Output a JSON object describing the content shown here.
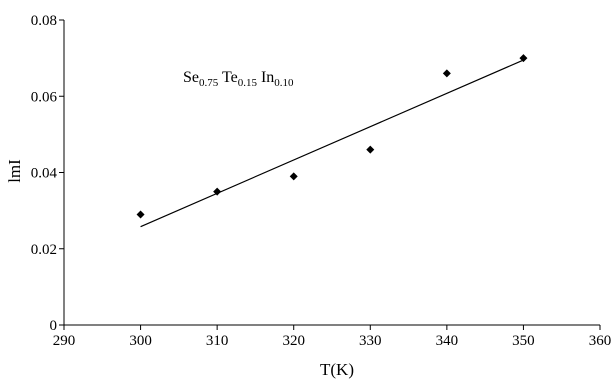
{
  "chart_data": {
    "type": "scatter",
    "xlabel": "T(K)",
    "ylabel": "lmI",
    "xlim": [
      290,
      360
    ],
    "ylim": [
      0,
      0.08
    ],
    "x_ticks": [
      290,
      300,
      310,
      320,
      330,
      340,
      350,
      360
    ],
    "y_ticks": [
      0,
      0.02,
      0.04,
      0.06,
      0.08
    ],
    "x_tick_labels": [
      "290",
      "300",
      "310",
      "320",
      "330",
      "340",
      "350",
      "360"
    ],
    "y_tick_labels": [
      "0",
      "0.02",
      "0.04",
      "0.06",
      "0.08"
    ],
    "grid": false,
    "series": [
      {
        "x": [
          300,
          310,
          320,
          330,
          340,
          350
        ],
        "y": [
          0.029,
          0.035,
          0.039,
          0.046,
          0.066,
          0.07
        ],
        "marker": "diamond",
        "color": "#000000"
      }
    ],
    "trendline": {
      "type": "linear",
      "x": [
        300,
        350
      ],
      "y": [
        0.0258,
        0.0695
      ],
      "color": "#000000"
    },
    "annotation": {
      "parts": [
        {
          "text": "Se",
          "sub": "0.75"
        },
        {
          "text": " Te",
          "sub": "0.15"
        },
        {
          "text": " In",
          "sub": "0.10"
        }
      ]
    }
  }
}
